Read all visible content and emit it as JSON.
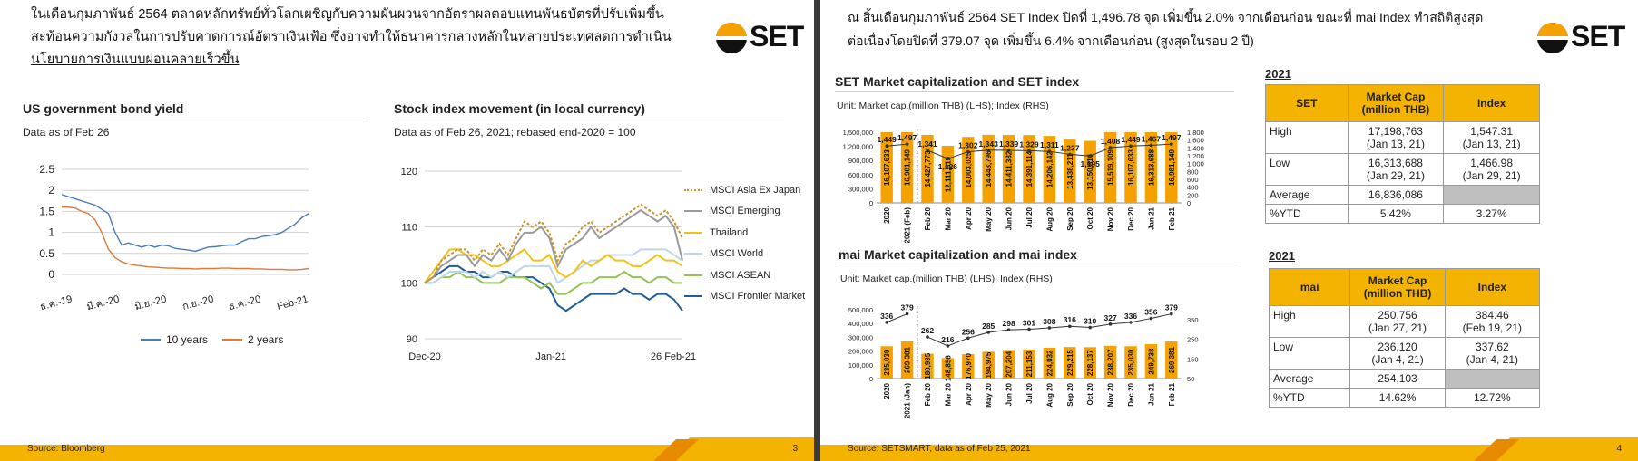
{
  "slide1": {
    "header_lines": [
      "ในเดือนกุมภาพันธ์ 2564 ตลาดหลักทรัพย์ทั่วโลกเผชิญกับความผันผวนจากอัตราผลตอบแทนพันธบัตรที่ปรับเพิ่มขึ้น",
      "สะท้อนความกังวลในการปรับคาดการณ์อัตราเงินเฟ้อ ซึ่งอาจทำให้ธนาคารกลางหลักในหลายประเทศลดการดำเนิน",
      "นโยบายการเงินแบบผ่อนคลายเร็วขึ้น"
    ],
    "logo": "SET",
    "left_title": "US government bond yield",
    "left_sub": "Data as of Feb 26",
    "right_title": "Stock index movement (in local currency)",
    "right_sub": "Data as of Feb 26, 2021; rebased end-2020 = 100",
    "footer": "Source: Bloomberg",
    "page": "3"
  },
  "slide2": {
    "header_line1": "ณ สิ้นเดือนกุมภาพันธ์ 2564 SET Index ปิดที่ 1,496.78 จุด เพิ่มขึ้น 2.0% จากเดือนก่อน ขณะที่ mai Index ทำสถิติสูงสุด",
    "header_line2": "ต่อเนื่องโดยปิดที่ 379.07 จุด เพิ่มขึ้น 6.4% จากเดือนก่อน (สูงสุดในรอบ 2 ปี)",
    "logo": "SET",
    "set_title": "SET Market capitalization and SET index",
    "set_unit": "Unit: Market cap.(million THB) (LHS); Index (RHS)",
    "mai_title": "mai Market capitalization and mai index",
    "mai_unit": "Unit: Market cap.(million THB) (LHS); Index (RHS)",
    "footer": "Source: SETSMART, data as of Feb 25, 2021",
    "page": "4",
    "set_table": {
      "year": "2021",
      "headers": [
        "SET",
        "Market Cap\n(million THB)",
        "Index"
      ],
      "rows": [
        [
          "High",
          "17,198,763\n(Jan 13, 21)",
          "1,547.31\n(Jan 13, 21)"
        ],
        [
          "Low",
          "16,313,688\n(Jan 29, 21)",
          "1,466.98\n(Jan 29, 21)"
        ],
        [
          "Average",
          "16,836,086",
          ""
        ],
        [
          "%YTD",
          "5.42%",
          "3.27%"
        ]
      ]
    },
    "mai_table": {
      "year": "2021",
      "headers": [
        "mai",
        "Market Cap\n(million THB)",
        "Index"
      ],
      "rows": [
        [
          "High",
          "250,756\n(Jan 27, 21)",
          "384.46\n(Feb 19, 21)"
        ],
        [
          "Low",
          "236,120\n(Jan 4, 21)",
          "337.62\n(Jan 4, 21)"
        ],
        [
          "Average",
          "254,103",
          ""
        ],
        [
          "%YTD",
          "14.62%",
          "12.72%"
        ]
      ]
    }
  },
  "colors": {
    "accent": "#f5a200",
    "navy": "#1f3864"
  },
  "chart_data": [
    {
      "type": "line",
      "title": "US government bond yield",
      "x_tick_labels": [
        "ธ.ค.-19",
        "มี.ค.-20",
        "มิ.ย.-20",
        "ก.ย.-20",
        "ธ.ค.-20",
        "Feb-21"
      ],
      "ylim": [
        0,
        2.5
      ],
      "y_ticks": [
        "0",
        "0.5",
        "1",
        "1.5",
        "2",
        "2.5"
      ],
      "grid": true,
      "legend": "bottom",
      "series": [
        {
          "name": "10 years",
          "color": "#4a7ebb",
          "values": [
            1.9,
            1.85,
            1.8,
            1.75,
            1.7,
            1.65,
            1.55,
            1.45,
            1.0,
            0.7,
            0.75,
            0.7,
            0.65,
            0.7,
            0.65,
            0.7,
            0.68,
            0.62,
            0.6,
            0.58,
            0.55,
            0.6,
            0.65,
            0.66,
            0.68,
            0.7,
            0.7,
            0.78,
            0.85,
            0.85,
            0.9,
            0.92,
            0.95,
            1.0,
            1.1,
            1.2,
            1.35,
            1.45
          ]
        },
        {
          "name": "2 years",
          "color": "#e07a3a",
          "values": [
            1.6,
            1.6,
            1.58,
            1.5,
            1.45,
            1.3,
            1.0,
            0.6,
            0.4,
            0.3,
            0.25,
            0.22,
            0.2,
            0.18,
            0.17,
            0.16,
            0.15,
            0.15,
            0.14,
            0.14,
            0.13,
            0.14,
            0.14,
            0.14,
            0.15,
            0.15,
            0.14,
            0.14,
            0.14,
            0.13,
            0.13,
            0.12,
            0.12,
            0.12,
            0.11,
            0.11,
            0.12,
            0.14
          ]
        }
      ]
    },
    {
      "type": "line",
      "title": "Stock index movement (in local currency)",
      "x_tick_labels": [
        "Dec-20",
        "Jan-21",
        "26 Feb-21"
      ],
      "ylim": [
        90,
        120
      ],
      "y_ticks": [
        "90",
        "100",
        "110",
        "120"
      ],
      "grid": true,
      "legend": "right",
      "series": [
        {
          "name": "MSCI Asia Ex Japan",
          "color": "#c8952a",
          "dash": "3,2",
          "values": [
            100,
            101,
            104,
            105,
            106,
            106,
            104,
            106,
            105,
            107,
            105,
            108,
            111,
            110,
            111,
            109,
            104,
            107,
            108,
            110,
            111,
            109,
            110,
            111,
            112,
            113,
            114,
            113,
            112,
            113,
            111,
            108
          ]
        },
        {
          "name": "MSCI Emerging",
          "color": "#9a9a9a",
          "values": [
            100,
            101,
            103,
            104,
            105,
            105,
            103,
            105,
            104,
            106,
            104,
            107,
            109,
            109,
            110,
            108,
            103,
            106,
            107,
            108,
            110,
            108,
            109,
            110,
            111,
            112,
            113,
            112,
            111,
            112,
            110,
            104
          ]
        },
        {
          "name": "Thailand",
          "color": "#f2c21a",
          "values": [
            100,
            102,
            104,
            106,
            106,
            105,
            105,
            104,
            103,
            103,
            104,
            105,
            106,
            104,
            104,
            105,
            102,
            101,
            102,
            104,
            103,
            104,
            105,
            104,
            104,
            103,
            103,
            104,
            105,
            104,
            104,
            103
          ]
        },
        {
          "name": "MSCI World",
          "color": "#bcd7ea",
          "values": [
            100,
            100,
            101,
            102,
            102,
            102,
            101,
            102,
            101,
            102,
            101,
            102,
            103,
            103,
            103,
            103,
            100,
            101,
            102,
            103,
            104,
            104,
            105,
            105,
            105,
            105,
            106,
            106,
            106,
            106,
            105,
            104
          ]
        },
        {
          "name": "MSCI ASEAN",
          "color": "#92c353",
          "values": [
            100,
            100,
            101,
            101,
            102,
            101,
            101,
            100,
            100,
            100,
            101,
            101,
            101,
            100,
            99,
            100,
            98,
            98,
            99,
            100,
            100,
            101,
            101,
            101,
            102,
            101,
            101,
            100,
            101,
            101,
            100,
            100
          ]
        },
        {
          "name": "MSCI Frontier Market",
          "color": "#1f5c99",
          "values": [
            100,
            101,
            102,
            103,
            103,
            102,
            102,
            101,
            101,
            102,
            102,
            101,
            101,
            101,
            100,
            99,
            96,
            95,
            96,
            97,
            98,
            98,
            98,
            98,
            99,
            98,
            98,
            97,
            98,
            98,
            97,
            95
          ]
        }
      ]
    },
    {
      "type": "bar",
      "title": "SET Market capitalization and SET index",
      "categories": [
        "2020",
        "2021 (Feb)",
        "Feb 20",
        "Mar 20",
        "Apr 20",
        "May 20",
        "Jun 20",
        "Jul 20",
        "Aug 20",
        "Sep 20",
        "Oct 20",
        "Nov 20",
        "Dec 20",
        "Jan 21",
        "Feb 21"
      ],
      "bar_labels": [
        "16,107,633",
        "16,981,149",
        "14,427,773",
        "12,111,619",
        "14,003,025",
        "14,448,796",
        "14,411,382",
        "14,391,114",
        "14,206,142",
        "13,438,211",
        "13,150,816",
        "15,519,109",
        "16,107,633",
        "16,313,688",
        "16,981,149"
      ],
      "market_cap": [
        16107633,
        16981149,
        14427773,
        12111619,
        14003025,
        14448796,
        14411382,
        14391114,
        14206142,
        13438211,
        13150816,
        15519109,
        16107633,
        16313688,
        16981149
      ],
      "index_labels": [
        "1,449",
        "1,497",
        "1,341",
        "1,126",
        "1,302",
        "1,343",
        "1,339",
        "1,329",
        "1,311",
        "1,237",
        "1,195",
        "1,408",
        "1,449",
        "1,467",
        "1,497"
      ],
      "index": [
        1449,
        1497,
        1341,
        1126,
        1302,
        1343,
        1339,
        1329,
        1311,
        1237,
        1195,
        1408,
        1449,
        1467,
        1497
      ],
      "y_left_ticks": [
        "0",
        "300,000",
        "600,000",
        "900,000",
        "1,200,000",
        "1,500,000"
      ],
      "y_right_ticks": [
        "0",
        "200",
        "400",
        "600",
        "800",
        "1,000",
        "1,200",
        "1,400",
        "1,600",
        "1,800"
      ],
      "ylim_right": [
        0,
        1800
      ],
      "index_pointlike": [
        true,
        true,
        false,
        true,
        true,
        true,
        true,
        true,
        true,
        true,
        true,
        true,
        true,
        true,
        true
      ]
    },
    {
      "type": "bar",
      "title": "mai Market capitalization and mai index",
      "categories": [
        "2020",
        "2021 (Jan)",
        "Feb 20",
        "Mar 20",
        "Apr 20",
        "May 20",
        "Jun 20",
        "Jul 20",
        "Aug 20",
        "Sep 20",
        "Oct 20",
        "Nov 20",
        "Dec 20",
        "Jan 21",
        "Feb 21"
      ],
      "bar_labels": [
        "235,030",
        "269,381",
        "180,995",
        "148,856",
        "176,970",
        "194,975",
        "207,204",
        "211,153",
        "224,032",
        "229,215",
        "228,137",
        "238,207",
        "235,030",
        "249,738",
        "269,381"
      ],
      "market_cap": [
        235030,
        269381,
        180995,
        148856,
        176970,
        194975,
        207204,
        211153,
        224032,
        229215,
        228137,
        238207,
        235030,
        249738,
        269381
      ],
      "index_labels": [
        "336",
        "379",
        "262",
        "216",
        "256",
        "285",
        "298",
        "301",
        "308",
        "316",
        "310",
        "327",
        "336",
        "356",
        "379"
      ],
      "index": [
        336,
        379,
        262,
        216,
        256,
        285,
        298,
        301,
        308,
        316,
        310,
        327,
        336,
        356,
        379
      ],
      "y_left_ticks": [
        "0",
        "100,000",
        "200,000",
        "300,000",
        "400,000",
        "500,000"
      ],
      "y_right_ticks": [
        "50",
        "150",
        "250",
        "350"
      ],
      "ylim_right": [
        50,
        400
      ]
    }
  ]
}
